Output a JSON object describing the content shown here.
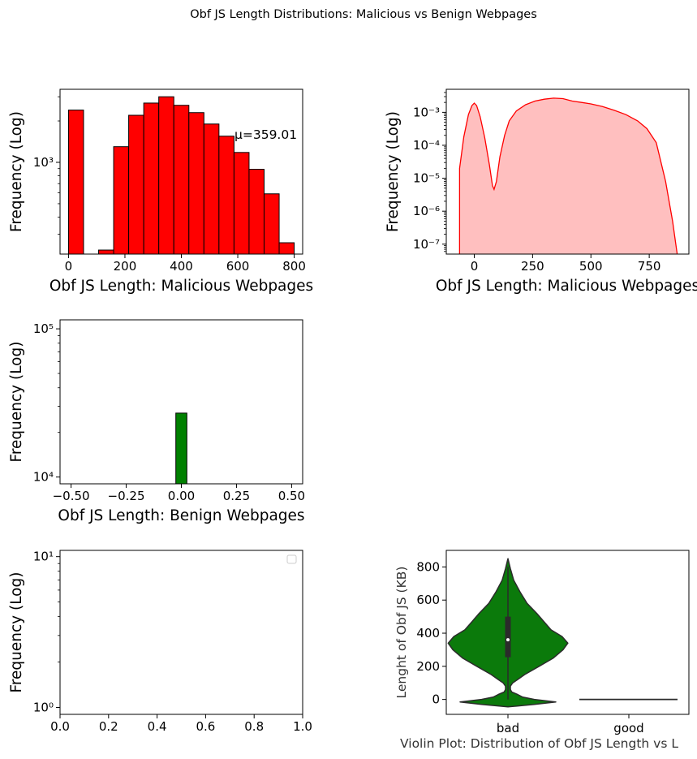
{
  "suptitle": "Obf JS Length Distributions: Malicious vs Benign Webpages",
  "chart_data": [
    {
      "type": "bar",
      "panel": "malicious-histogram",
      "yscale": "log",
      "bin_edges": [
        0,
        53.3,
        106.7,
        160,
        213.3,
        266.7,
        320,
        373.3,
        426.7,
        480,
        533.3,
        586.7,
        640,
        693.3,
        746.7,
        800
      ],
      "values": [
        2400,
        0,
        230,
        1300,
        2200,
        2700,
        3000,
        2600,
        2300,
        1900,
        1550,
        1180,
        890,
        590,
        260
      ],
      "color": "#ff0000",
      "xlim": [
        -30,
        830
      ],
      "ylim": [
        215,
        3400
      ],
      "xticks": [
        "0",
        "200",
        "400",
        "600",
        "800"
      ],
      "yticks": [
        "10³"
      ],
      "xlabel": "Obf JS Length: Malicious Webpages",
      "ylabel": "Frequency (Log)",
      "annotation": "μ=359.01"
    },
    {
      "type": "area",
      "panel": "malicious-kde",
      "yscale": "log",
      "x": [
        -63,
        -45,
        -25,
        -10,
        0,
        10,
        25,
        45,
        65,
        78,
        85,
        95,
        110,
        130,
        150,
        180,
        220,
        260,
        300,
        340,
        380,
        420,
        460,
        500,
        550,
        600,
        650,
        700,
        740,
        780,
        820,
        850,
        870
      ],
      "y": [
        2e-05,
        0.00018,
        0.00085,
        0.0016,
        0.0019,
        0.0016,
        0.00075,
        0.00017,
        2.5e-05,
        6e-06,
        4.6e-06,
        8e-06,
        4.5e-05,
        0.0002,
        0.00055,
        0.0011,
        0.0017,
        0.0022,
        0.0025,
        0.0027,
        0.0026,
        0.0022,
        0.002,
        0.0018,
        0.0015,
        0.00115,
        0.00085,
        0.00055,
        0.00032,
        0.00012,
        8e-06,
        5e-07,
        5e-08
      ],
      "line_color": "#ff0000",
      "fill_color": "#ffbfbf",
      "xlim": [
        -120,
        920
      ],
      "ylim": [
        5e-08,
        0.005
      ],
      "xticks": [
        "0",
        "250",
        "500",
        "750"
      ],
      "yticks": [
        "10⁻⁷",
        "10⁻⁶",
        "10⁻⁵",
        "10⁻⁴",
        "10⁻³"
      ],
      "xlabel": "Obf JS Length: Malicious Webpages",
      "ylabel": "Frequency (Log)"
    },
    {
      "type": "bar",
      "panel": "benign-histogram",
      "yscale": "log",
      "bin_edges": [
        -0.025,
        0.025
      ],
      "values": [
        27000
      ],
      "color": "#008000",
      "xlim": [
        -0.55,
        0.55
      ],
      "ylim": [
        9000,
        115000
      ],
      "xticks": [
        "−0.50",
        "−0.25",
        "0.00",
        "0.25",
        "0.50"
      ],
      "yticks": [
        "10⁴",
        "10⁵"
      ],
      "xlabel": "Obf JS Length: Benign Webpages",
      "ylabel": "Frequency (Log)"
    },
    {
      "type": "scatter",
      "panel": "empty-axes",
      "yscale": "log",
      "xlim": [
        0,
        1
      ],
      "ylim": [
        0.9,
        11
      ],
      "xticks": [
        "0.0",
        "0.2",
        "0.4",
        "0.6",
        "0.8",
        "1.0"
      ],
      "yticks": [
        "10⁰",
        "10¹"
      ],
      "xlabel": "",
      "ylabel": "Frequency (Log)",
      "legend": "top-right (empty)"
    },
    {
      "type": "violin",
      "panel": "violin",
      "categories": [
        "bad",
        "good"
      ],
      "series": [
        {
          "category": "bad",
          "profile": [
            [
              -45,
              0
            ],
            [
              -30,
              55
            ],
            [
              -15,
              100
            ],
            [
              0,
              55
            ],
            [
              15,
              30
            ],
            [
              30,
              20
            ],
            [
              45,
              8
            ],
            [
              60,
              5
            ],
            [
              80,
              5
            ],
            [
              100,
              10
            ],
            [
              120,
              20
            ],
            [
              150,
              35
            ],
            [
              200,
              65
            ],
            [
              250,
              95
            ],
            [
              300,
              115
            ],
            [
              340,
              125
            ],
            [
              380,
              113
            ],
            [
              420,
              90
            ],
            [
              470,
              75
            ],
            [
              520,
              60
            ],
            [
              580,
              40
            ],
            [
              650,
              25
            ],
            [
              720,
              12
            ],
            [
              790,
              5
            ],
            [
              850,
              0
            ]
          ],
          "q1": 255,
          "median": 360,
          "q3": 500,
          "whisker_low": 0,
          "whisker_high": 800
        },
        {
          "category": "good",
          "value": 0
        }
      ],
      "color": "#0b7a0b",
      "ylim": [
        -90,
        900
      ],
      "yticks": [
        "0",
        "200",
        "400",
        "600",
        "800"
      ],
      "xlabel": "Violin Plot: Distribution of Obf JS Length vs L",
      "ylabel": "Lenght of Obf JS (KB)"
    }
  ]
}
